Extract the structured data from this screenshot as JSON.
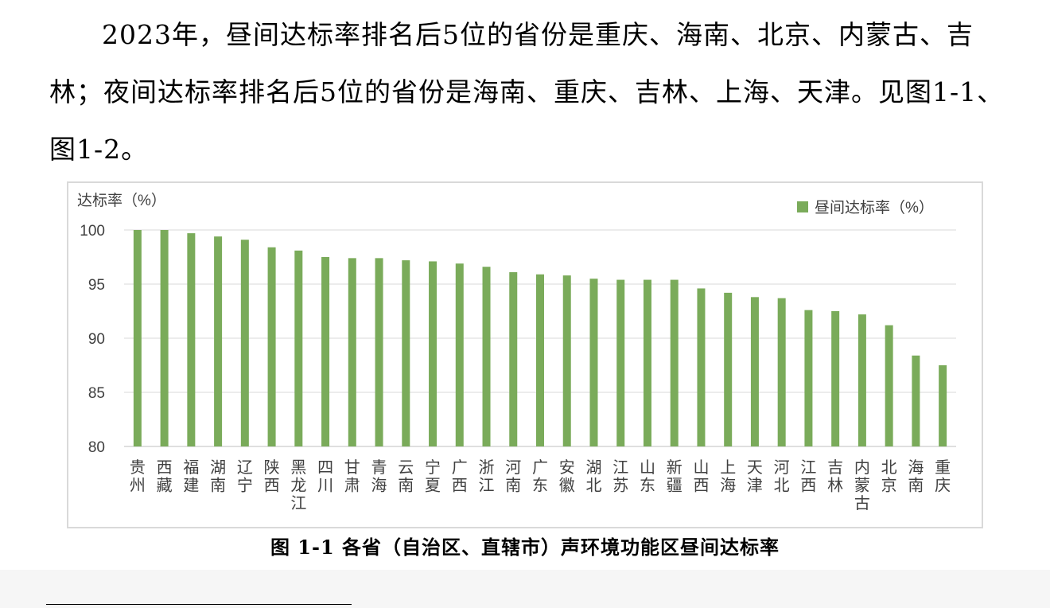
{
  "paragraph": "2023年，昼间达标率排名后5位的省份是重庆、海南、北京、内蒙古、吉林；夜间达标率排名后5位的省份是海南、重庆、吉林、上海、天津。见图1-1、图1-2。",
  "figure_caption": "图 1-1  各省（自治区、直辖市）声环境功能区昼间达标率",
  "chart_data": {
    "type": "bar",
    "title": "",
    "ylabel": "达标率（%）",
    "xlabel": "",
    "ylim": [
      80,
      100
    ],
    "yticks": [
      80,
      85,
      90,
      95,
      100
    ],
    "grid": true,
    "legend_position": "top-right",
    "bar_color": "#7aab5a",
    "categories": [
      "贵州",
      "西藏",
      "福建",
      "湖南",
      "辽宁",
      "陕西",
      "黑龙江",
      "四川",
      "甘肃",
      "青海",
      "云南",
      "宁夏",
      "广西",
      "浙江",
      "河南",
      "广东",
      "安徽",
      "湖北",
      "江苏",
      "山东",
      "新疆",
      "山西",
      "上海",
      "天津",
      "河北",
      "江西",
      "吉林",
      "内蒙古",
      "北京",
      "海南",
      "重庆"
    ],
    "series": [
      {
        "name": "昼间达标率（%）",
        "values": [
          100,
          100,
          99.7,
          99.4,
          99.1,
          98.4,
          98.1,
          97.5,
          97.4,
          97.4,
          97.2,
          97.1,
          96.9,
          96.6,
          96.1,
          95.9,
          95.8,
          95.5,
          95.4,
          95.4,
          95.4,
          94.6,
          94.2,
          93.8,
          93.7,
          92.6,
          92.5,
          92.2,
          91.2,
          88.4,
          87.5
        ]
      }
    ]
  }
}
